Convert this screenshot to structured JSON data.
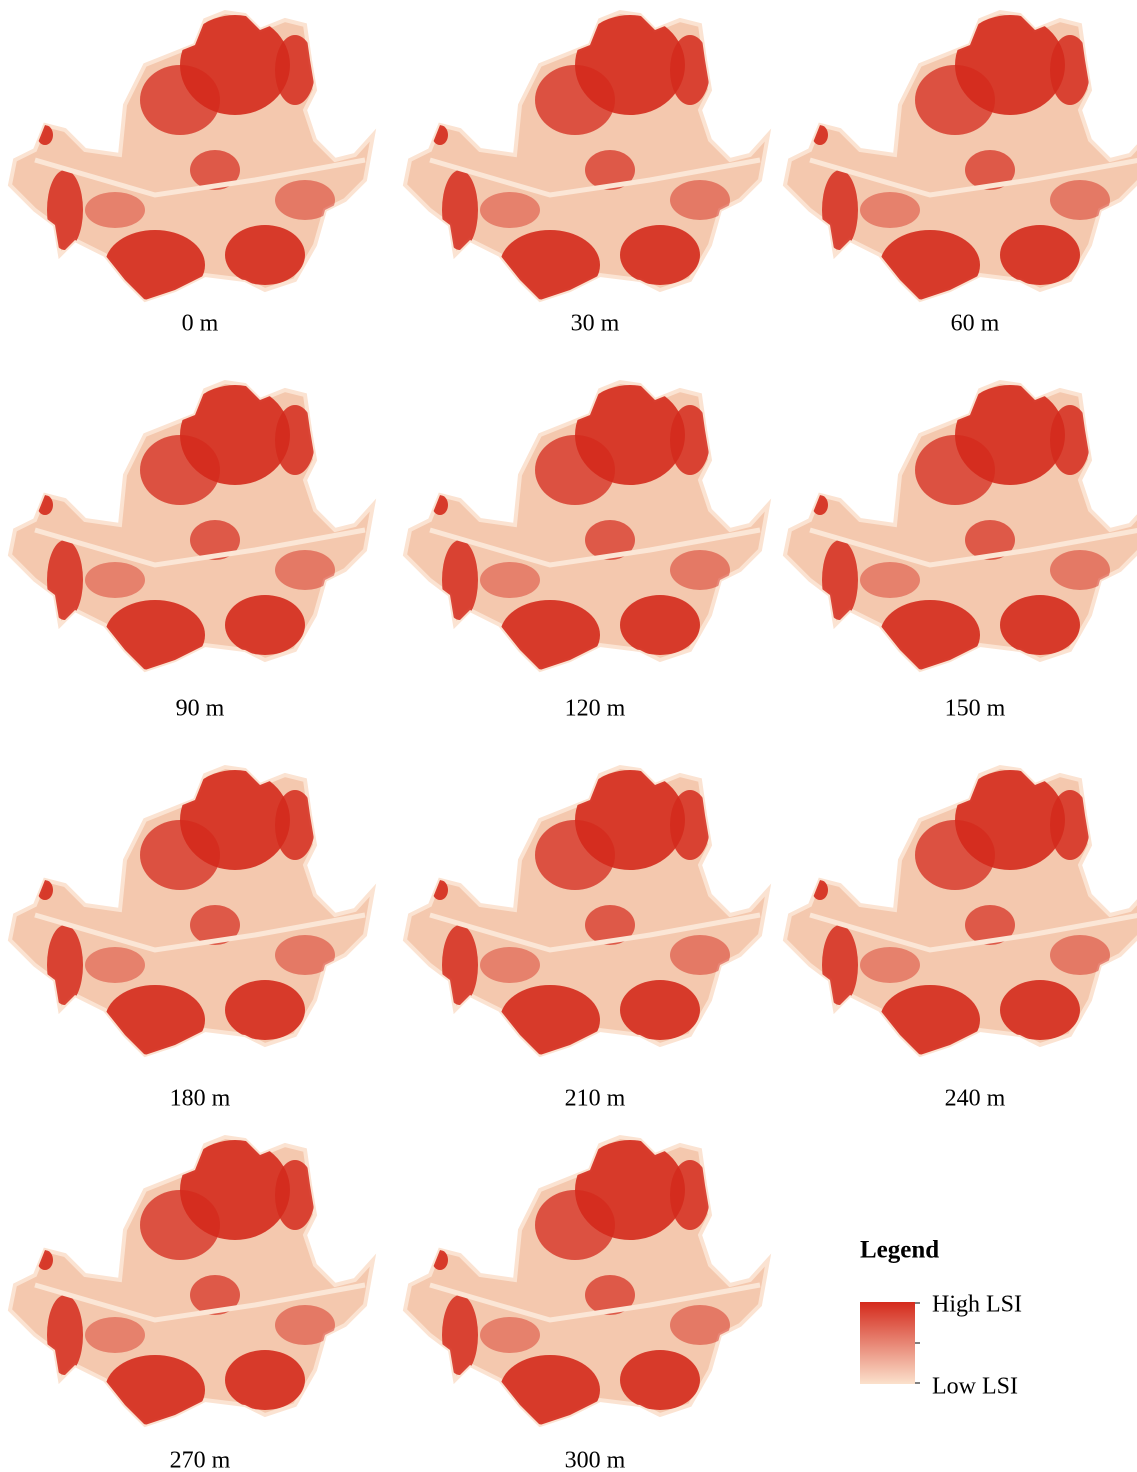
{
  "panels": [
    {
      "label": "0 m"
    },
    {
      "label": "30 m"
    },
    {
      "label": "60 m"
    },
    {
      "label": "90 m"
    },
    {
      "label": "120 m"
    },
    {
      "label": "150 m"
    },
    {
      "label": "180 m"
    },
    {
      "label": "210 m"
    },
    {
      "label": "240 m"
    },
    {
      "label": "270 m"
    },
    {
      "label": "300 m"
    }
  ],
  "legend": {
    "title": "Legend",
    "high": "High LSI",
    "low": "Low LSI"
  }
}
